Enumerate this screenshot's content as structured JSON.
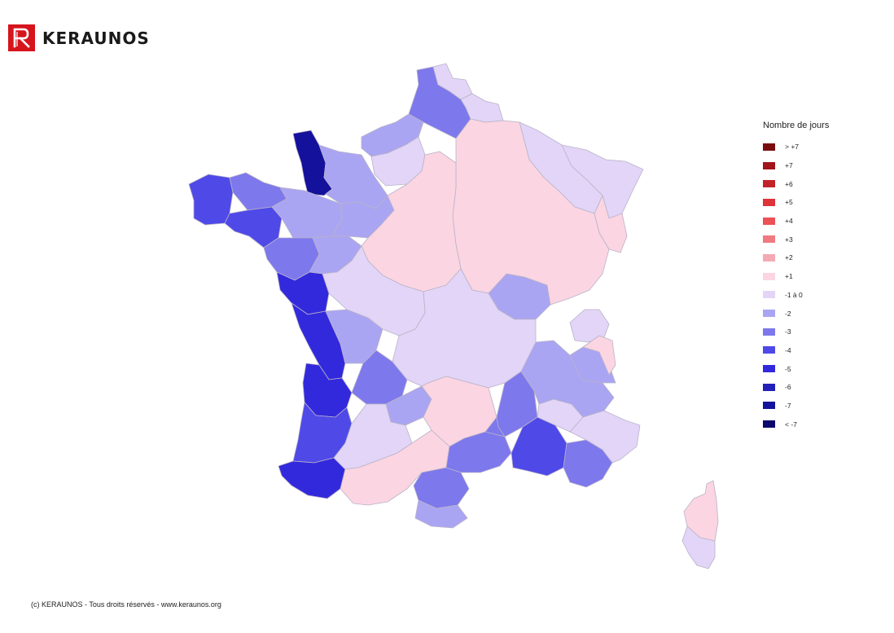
{
  "brand": {
    "name": "KERAUNOS",
    "logo_color": "#d6141c",
    "logo_glyph": "R"
  },
  "legend": {
    "title": "Nombre de jours",
    "items": [
      {
        "label": "> +7",
        "color": "#7a0c10"
      },
      {
        "label": "+7",
        "color": "#a0141a"
      },
      {
        "label": "+6",
        "color": "#c2232a"
      },
      {
        "label": "+5",
        "color": "#dd3339"
      },
      {
        "label": "+4",
        "color": "#eb5156"
      },
      {
        "label": "+3",
        "color": "#ef7a80"
      },
      {
        "label": "+2",
        "color": "#f3aab3"
      },
      {
        "label": "+1",
        "color": "#fbd5e2"
      },
      {
        "label": "-1 à 0",
        "color": "#e2d5f7"
      },
      {
        "label": "-2",
        "color": "#aaa5f2"
      },
      {
        "label": "-3",
        "color": "#7d78ec"
      },
      {
        "label": "-4",
        "color": "#4f49e8"
      },
      {
        "label": "-5",
        "color": "#3329dc"
      },
      {
        "label": "-6",
        "color": "#2220b8"
      },
      {
        "label": "-7",
        "color": "#14119c"
      },
      {
        "label": "< -7",
        "color": "#0b086e"
      }
    ]
  },
  "map": {
    "region": "France",
    "border_color": "#b9b3c8",
    "zones": [
      {
        "id": "nord",
        "value_class": "-3"
      },
      {
        "id": "littoral-nord",
        "value_class": "-1 à 0"
      },
      {
        "id": "pas-de-calais",
        "value_class": "-1 à 0"
      },
      {
        "id": "somme",
        "value_class": "-2"
      },
      {
        "id": "seine-maritime",
        "value_class": "-1 à 0"
      },
      {
        "id": "manche",
        "value_class": "-7"
      },
      {
        "id": "calvados",
        "value_class": "-2"
      },
      {
        "id": "finistere",
        "value_class": "-4"
      },
      {
        "id": "cotes-armor",
        "value_class": "-3"
      },
      {
        "id": "morbihan",
        "value_class": "-4"
      },
      {
        "id": "ille-vilaine",
        "value_class": "-2"
      },
      {
        "id": "mayenne",
        "value_class": "-2"
      },
      {
        "id": "loire-atlantique",
        "value_class": "-3"
      },
      {
        "id": "maine-loire",
        "value_class": "-2"
      },
      {
        "id": "vendee",
        "value_class": "-5"
      },
      {
        "id": "charente-maritime",
        "value_class": "-5"
      },
      {
        "id": "gironde",
        "value_class": "-5"
      },
      {
        "id": "landes",
        "value_class": "-4"
      },
      {
        "id": "pyrenees-atlantiques",
        "value_class": "-5"
      },
      {
        "id": "dordogne",
        "value_class": "-3"
      },
      {
        "id": "charente",
        "value_class": "-2"
      },
      {
        "id": "lot",
        "value_class": "-2"
      },
      {
        "id": "haute-garonne",
        "value_class": "-1 à 0"
      },
      {
        "id": "ariege",
        "value_class": "+1"
      },
      {
        "id": "aude",
        "value_class": "-3"
      },
      {
        "id": "pyrenees-orientales",
        "value_class": "-2"
      },
      {
        "id": "herault",
        "value_class": "-3"
      },
      {
        "id": "gard",
        "value_class": "-3"
      },
      {
        "id": "bouches-rhone",
        "value_class": "-4"
      },
      {
        "id": "var",
        "value_class": "-3"
      },
      {
        "id": "alpes-maritimes",
        "value_class": "-1 à 0"
      },
      {
        "id": "vaucluse",
        "value_class": "-1 à 0"
      },
      {
        "id": "drome",
        "value_class": "-2"
      },
      {
        "id": "ardeche",
        "value_class": "-3"
      },
      {
        "id": "isere",
        "value_class": "-2"
      },
      {
        "id": "haute-savoie",
        "value_class": "-1 à 0"
      },
      {
        "id": "savoie",
        "value_class": "+1"
      },
      {
        "id": "rhone",
        "value_class": "-2"
      },
      {
        "id": "bas-rhin",
        "value_class": "-1 à 0"
      },
      {
        "id": "haut-rhin",
        "value_class": "+1"
      },
      {
        "id": "moselle",
        "value_class": "-1 à 0"
      },
      {
        "id": "centre-est",
        "value_class": "+1"
      },
      {
        "id": "centre",
        "value_class": "+1"
      },
      {
        "id": "massif-central",
        "value_class": "-1 à 0"
      },
      {
        "id": "limousin",
        "value_class": "-1 à 0"
      },
      {
        "id": "cantal",
        "value_class": "+1"
      },
      {
        "id": "corse-nord",
        "value_class": "+1"
      },
      {
        "id": "corse-sud",
        "value_class": "-1 à 0"
      }
    ]
  },
  "footer": {
    "copyright": "(c) KERAUNOS - Tous droits réservés - www.keraunos.org"
  }
}
